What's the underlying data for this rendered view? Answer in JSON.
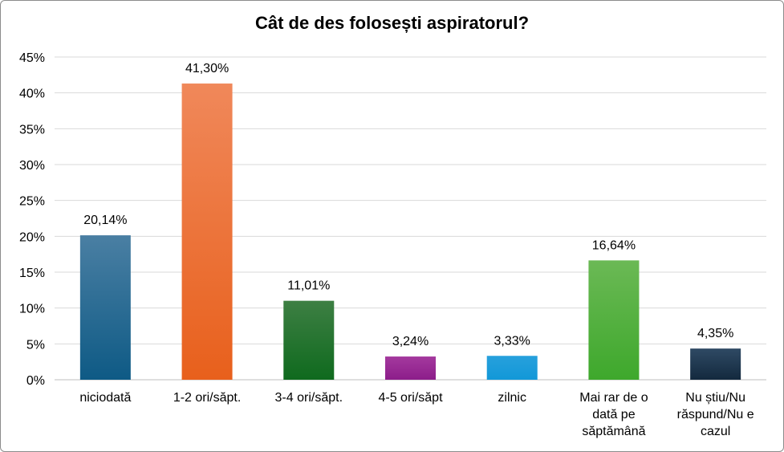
{
  "chart_data": {
    "type": "bar",
    "title": "Cât de des folosești aspiratorul?",
    "xlabel": "",
    "ylabel": "",
    "ylim": [
      0,
      45
    ],
    "y_ticks": [
      "0%",
      "5%",
      "10%",
      "15%",
      "20%",
      "25%",
      "30%",
      "35%",
      "40%",
      "45%"
    ],
    "grid": true,
    "legend": "none",
    "categories": [
      "niciodată",
      "1-2 ori/săpt.",
      "3-4 ori/săpt.",
      "4-5 ori/săpt",
      "zilnic",
      "Mai rar de o dată pe săptămână",
      "Nu știu/Nu răspund/Nu e cazul"
    ],
    "category_lines": [
      [
        "niciodată"
      ],
      [
        "1-2 ori/săpt."
      ],
      [
        "3-4 ori/săpt."
      ],
      [
        "4-5 ori/săpt"
      ],
      [
        "zilnic"
      ],
      [
        "Mai rar de o",
        "dată pe",
        "săptămână"
      ],
      [
        "Nu știu/Nu",
        "răspund/Nu e",
        "cazul"
      ]
    ],
    "values": [
      20.14,
      41.3,
      11.01,
      3.24,
      3.33,
      16.64,
      4.35
    ],
    "value_labels": [
      "20,14%",
      "41,30%",
      "11,01%",
      "3,24%",
      "3,33%",
      "16,64%",
      "4,35%"
    ],
    "colors": [
      [
        "#4a7fa3",
        "#0e5a85"
      ],
      [
        "#f0885a",
        "#e8601c"
      ],
      [
        "#3d7f43",
        "#0f6a1e"
      ],
      [
        "#a4399e",
        "#8c1d8a"
      ],
      [
        "#27a0dc",
        "#1298d8"
      ],
      [
        "#6bb955",
        "#3ea82c"
      ],
      [
        "#2f4a64",
        "#13293e"
      ]
    ]
  }
}
